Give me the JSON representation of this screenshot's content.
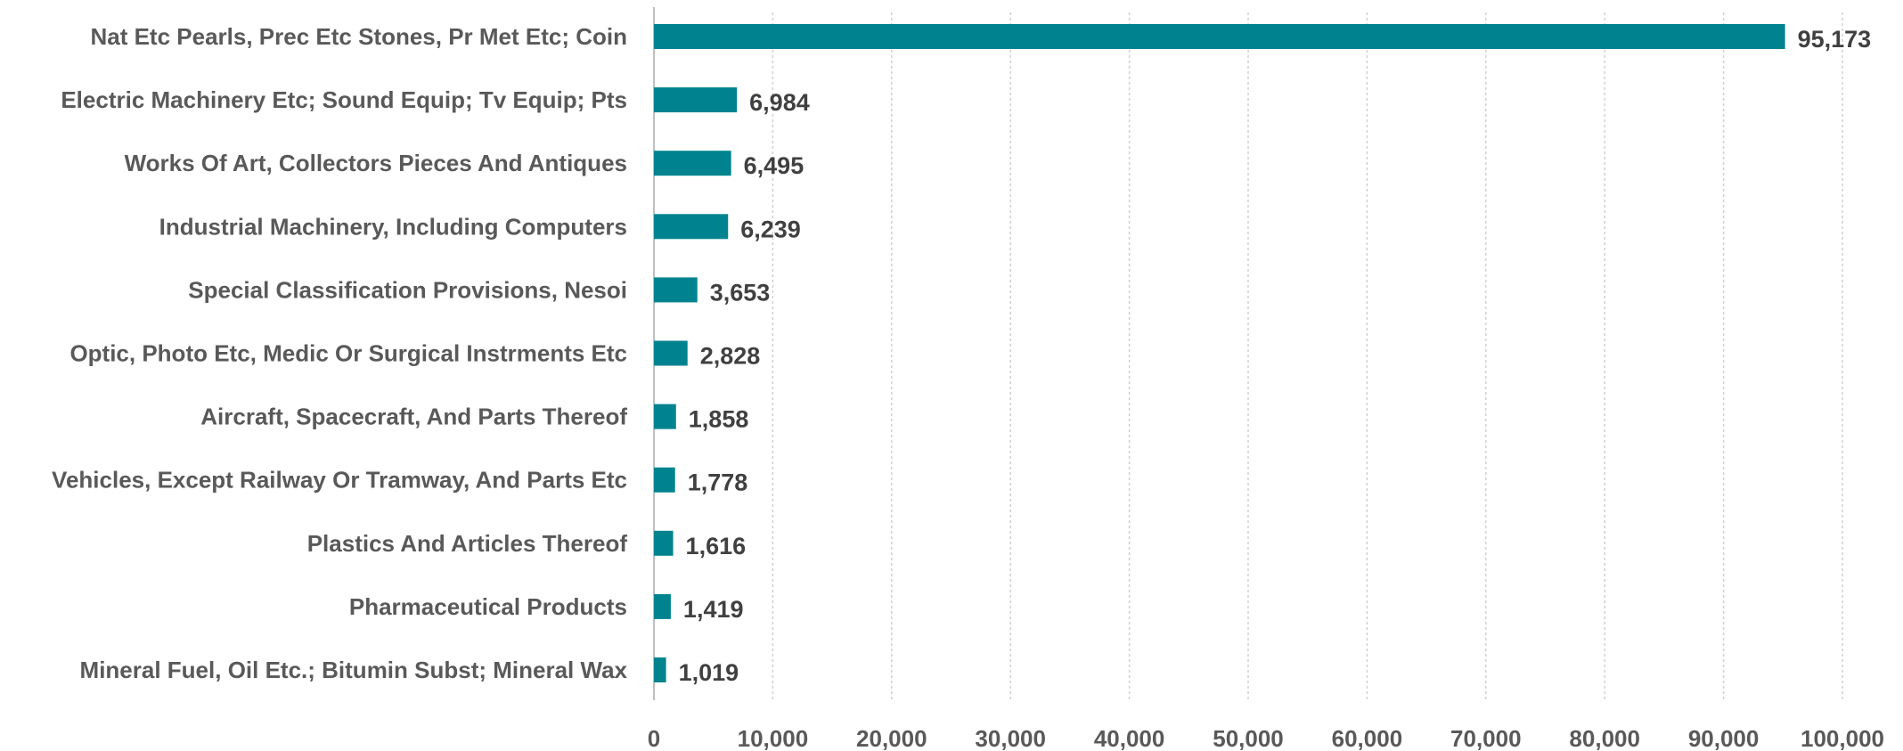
{
  "chart_data": {
    "type": "bar",
    "orientation": "horizontal",
    "title": "",
    "xlabel": "",
    "ylabel": "",
    "xlim": [
      0,
      100000
    ],
    "x_ticks": [
      0,
      10000,
      20000,
      30000,
      40000,
      50000,
      60000,
      70000,
      80000,
      90000,
      100000
    ],
    "x_tick_labels": [
      "0",
      "10,000",
      "20,000",
      "30,000",
      "40,000",
      "50,000",
      "60,000",
      "70,000",
      "80,000",
      "90,000",
      "100,000"
    ],
    "grid": "vertical dotted",
    "bar_color": "#00838f",
    "categories": [
      "Nat Etc Pearls, Prec Etc Stones, Pr Met Etc; Coin",
      "Electric Machinery Etc; Sound Equip; Tv Equip; Pts",
      "Works Of Art, Collectors Pieces And Antiques",
      "Industrial Machinery, Including Computers",
      "Special Classification Provisions, Nesoi",
      "Optic, Photo Etc, Medic Or Surgical Instrments Etc",
      "Aircraft, Spacecraft, And Parts Thereof",
      "Vehicles, Except Railway Or Tramway, And Parts Etc",
      "Plastics And Articles Thereof",
      "Pharmaceutical Products",
      "Mineral Fuel, Oil Etc.; Bitumin Subst; Mineral Wax"
    ],
    "values": [
      95173,
      6984,
      6495,
      6239,
      3653,
      2828,
      1858,
      1778,
      1616,
      1419,
      1019
    ],
    "value_labels": [
      "95,173",
      "6,984",
      "6,495",
      "6,239",
      "3,653",
      "2,828",
      "1,858",
      "1,778",
      "1,616",
      "1,419",
      "1,019"
    ]
  }
}
